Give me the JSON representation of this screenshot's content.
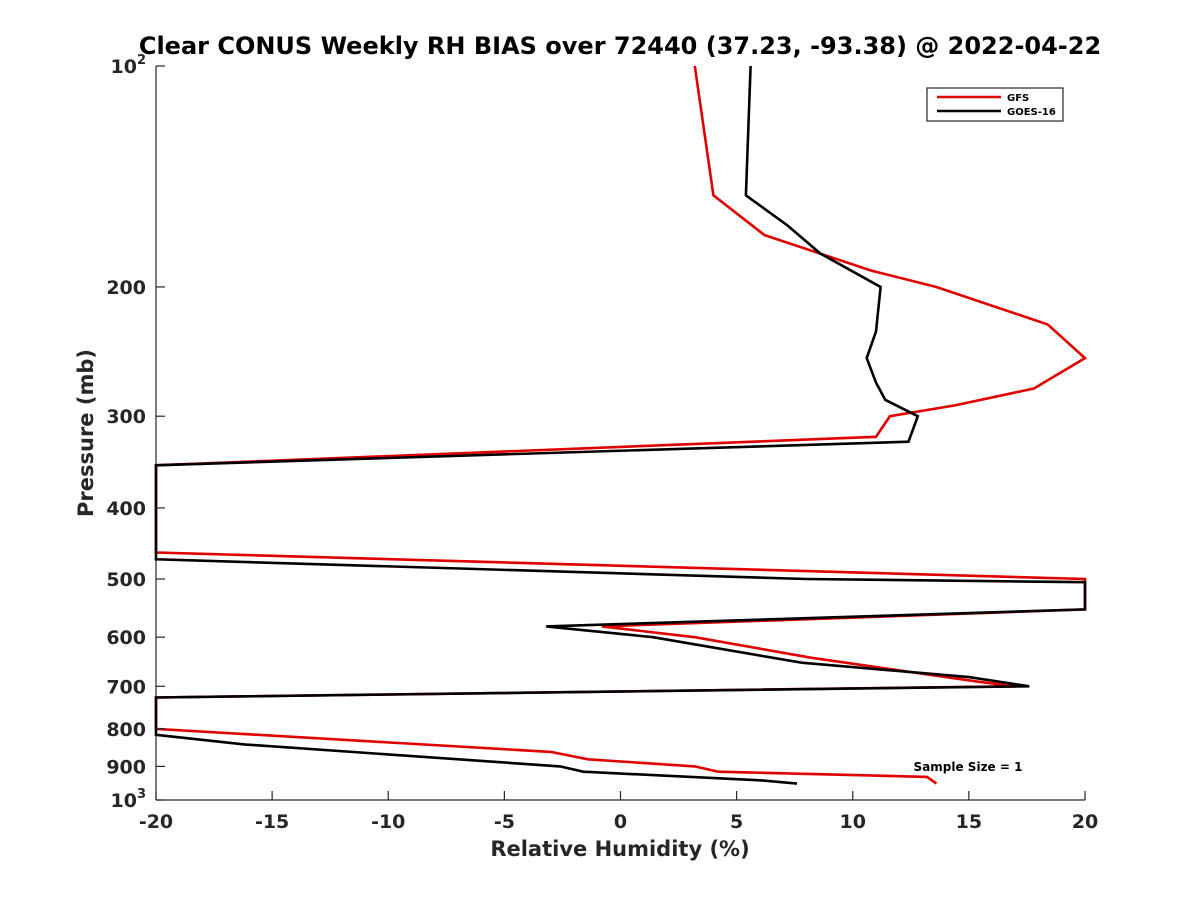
{
  "chart_data": {
    "type": "line",
    "title": "Clear CONUS Weekly RH BIAS over 72440 (37.23, -93.38) @ 2022-04-22",
    "xlabel": "Relative Humidity (%)",
    "ylabel": "Pressure (mb)",
    "xlim": [
      -20,
      20
    ],
    "ylim": [
      100,
      1000
    ],
    "y_scale": "log",
    "y_reversed": true,
    "x_ticks": [
      "-20",
      "-15",
      "-10",
      "-5",
      "0",
      "5",
      "10",
      "15",
      "20"
    ],
    "y_ticks": [
      {
        "base": "10",
        "exp": "2",
        "label": ""
      },
      {
        "label": "200"
      },
      {
        "label": "300"
      },
      {
        "label": "400"
      },
      {
        "label": "500"
      },
      {
        "label": "600"
      },
      {
        "label": "700"
      },
      {
        "label": "800"
      },
      {
        "label": "900"
      },
      {
        "base": "10",
        "exp": "3",
        "label": ""
      }
    ],
    "legend_position": "top-right",
    "annotation": "Sample Size = 1",
    "series": [
      {
        "name": "GFS",
        "color": "#e00000",
        "points": [
          [
            3.2,
            100
          ],
          [
            4.0,
            150
          ],
          [
            6.2,
            170
          ],
          [
            10.8,
            190
          ],
          [
            13.6,
            200
          ],
          [
            18.4,
            225
          ],
          [
            20.0,
            250
          ],
          [
            17.8,
            275
          ],
          [
            14.4,
            290
          ],
          [
            11.6,
            300
          ],
          [
            11.0,
            320
          ],
          [
            -20.0,
            350
          ],
          [
            -20.0,
            460
          ],
          [
            20.0,
            500
          ],
          [
            20.0,
            550
          ],
          [
            -0.8,
            580
          ],
          [
            3.2,
            600
          ],
          [
            8.2,
            640
          ],
          [
            15.4,
            690
          ],
          [
            17.0,
            700
          ],
          [
            -20.0,
            725
          ],
          [
            -20.0,
            800
          ],
          [
            -3.0,
            860
          ],
          [
            -1.4,
            880
          ],
          [
            3.2,
            900
          ],
          [
            4.2,
            915
          ],
          [
            13.2,
            930
          ],
          [
            13.6,
            950
          ]
        ]
      },
      {
        "name": "GOES-16",
        "color": "#000000",
        "points": [
          [
            5.6,
            100
          ],
          [
            5.4,
            150
          ],
          [
            7.2,
            165
          ],
          [
            8.6,
            180
          ],
          [
            11.2,
            200
          ],
          [
            11.0,
            230
          ],
          [
            10.6,
            250
          ],
          [
            11.0,
            270
          ],
          [
            11.4,
            285
          ],
          [
            12.8,
            300
          ],
          [
            12.4,
            325
          ],
          [
            -20.0,
            350
          ],
          [
            -20.0,
            470
          ],
          [
            8.0,
            500
          ],
          [
            20.0,
            505
          ],
          [
            20.0,
            550
          ],
          [
            -3.2,
            580
          ],
          [
            1.4,
            600
          ],
          [
            7.8,
            650
          ],
          [
            15.0,
            680
          ],
          [
            17.6,
            700
          ],
          [
            -20.0,
            725
          ],
          [
            -20.0,
            815
          ],
          [
            -16.2,
            840
          ],
          [
            -2.6,
            900
          ],
          [
            -1.6,
            915
          ],
          [
            6.0,
            940
          ],
          [
            7.6,
            950
          ]
        ]
      }
    ]
  }
}
